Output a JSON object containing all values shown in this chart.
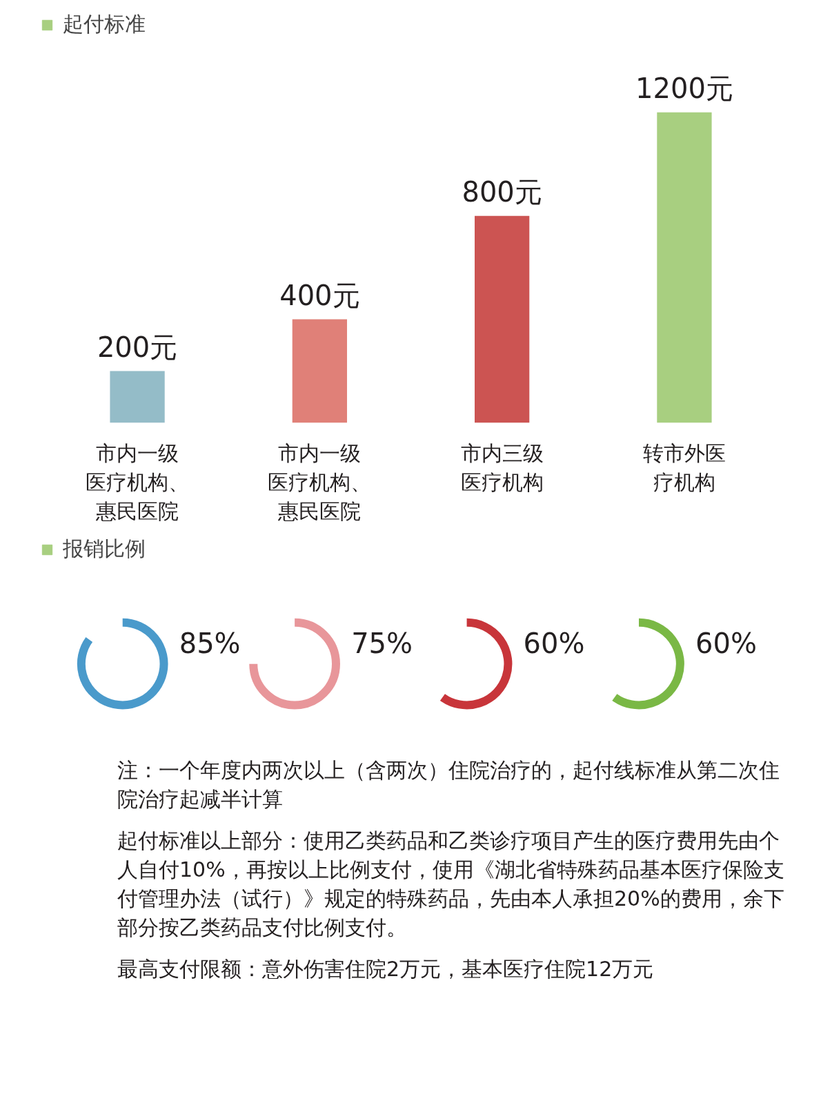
{
  "chart_data": [
    {
      "type": "bar",
      "categories": [
        "市内一级医疗机构、惠民医院",
        "市内一级医疗机构、惠民医院",
        "市内三级医疗机构",
        "转市外医疗机构"
      ],
      "series": [
        {
          "name": "起付标准",
          "color": "#a8cf80",
          "colors": [
            "#94bcc8",
            "#e08078",
            "#cc5452",
            "#a8cf80"
          ],
          "values": [
            200,
            400,
            800,
            1200
          ],
          "value_labels": [
            "200元",
            "400元",
            "800元",
            "1200元"
          ]
        }
      ],
      "legend": "top left",
      "grid": false,
      "tick_labels": "x"
    },
    {
      "type": "other",
      "categories": [
        null,
        null,
        null,
        null
      ],
      "series": [
        {
          "name": "报销比例",
          "color": "#a8cf80",
          "colors": [
            "#4a9acb",
            "#e8969a",
            "#c8353a",
            "#7ab845"
          ],
          "values": [
            85,
            75,
            60,
            60
          ],
          "value_labels": [
            "85%",
            "75%",
            "60%",
            "60%"
          ]
        }
      ],
      "legend": "top left",
      "annotations": [
        "注：一个年度内两次以上（含两次）住院治疗的，起付线标准从第二次住院治疗起减半计算",
        "起付标准以上部分：使用乙类药品和乙类诊疗项目产生的医疗费用先由个人自付10%，再按以上比例支付，使用《湖北省特殊药品基本医疗保险支付管理办法（试行）》规定的特殊药品，先由本人承担20%的费用，余下部分按乙类药品支付比例支付。",
        "最高支付限额：意外伤害住院2万元，基本医疗住院12万元"
      ]
    }
  ]
}
